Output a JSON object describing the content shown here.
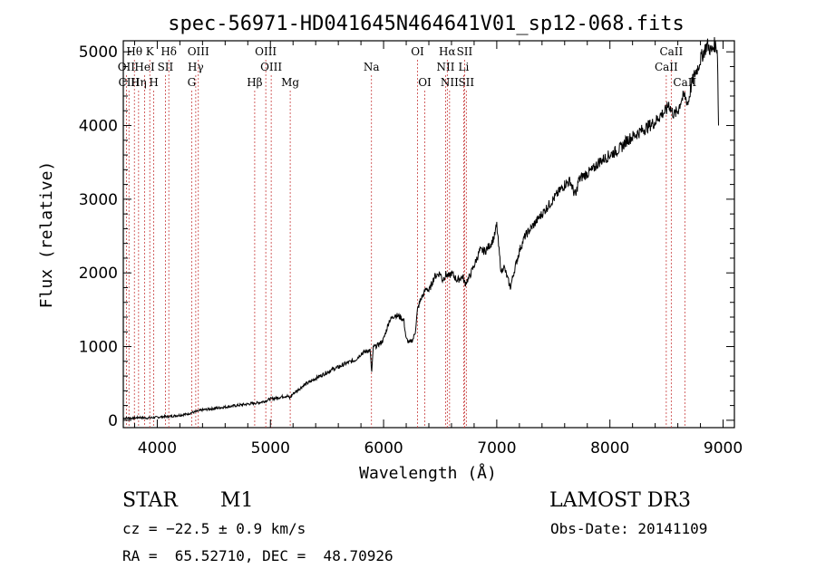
{
  "chart_data": {
    "type": "line",
    "title": "spec-56971-HD041645N464641V01_sp12-068.fits",
    "xlabel": "Wavelength (Å)",
    "ylabel": "Flux (relative)",
    "xlim": [
      3700,
      9100
    ],
    "ylim": [
      -100,
      5150
    ],
    "xticks": [
      4000,
      5000,
      6000,
      7000,
      8000,
      9000
    ],
    "xtick_labels": [
      "4000",
      "5000",
      "6000",
      "7000",
      "8000",
      "9000"
    ],
    "yticks": [
      0,
      1000,
      2000,
      3000,
      4000,
      5000
    ],
    "ytick_labels": [
      "0",
      "1000",
      "2000",
      "3000",
      "4000",
      "5000"
    ],
    "series": [
      {
        "name": "spectrum",
        "x": [
          3700,
          3750,
          3800,
          3850,
          3900,
          3950,
          4000,
          4050,
          4100,
          4150,
          4200,
          4250,
          4300,
          4350,
          4400,
          4450,
          4500,
          4550,
          4600,
          4650,
          4700,
          4750,
          4800,
          4850,
          4900,
          4950,
          5000,
          5050,
          5100,
          5150,
          5170,
          5200,
          5250,
          5300,
          5350,
          5400,
          5450,
          5500,
          5550,
          5600,
          5650,
          5700,
          5750,
          5800,
          5850,
          5880,
          5895,
          5910,
          5930,
          5950,
          5980,
          6000,
          6050,
          6100,
          6150,
          6180,
          6200,
          6230,
          6260,
          6280,
          6300,
          6330,
          6350,
          6380,
          6400,
          6450,
          6500,
          6520,
          6550,
          6580,
          6600,
          6650,
          6700,
          6720,
          6760,
          6800,
          6850,
          6900,
          6950,
          6980,
          7000,
          7020,
          7040,
          7060,
          7080,
          7100,
          7120,
          7150,
          7200,
          7250,
          7300,
          7350,
          7400,
          7450,
          7500,
          7550,
          7600,
          7650,
          7680,
          7700,
          7720,
          7750,
          7800,
          7850,
          7900,
          7950,
          8000,
          8050,
          8100,
          8150,
          8200,
          8250,
          8300,
          8350,
          8400,
          8450,
          8498,
          8520,
          8542,
          8570,
          8600,
          8630,
          8662,
          8690,
          8720,
          8750,
          8780,
          8800,
          8830,
          8860,
          8880,
          8900,
          8920,
          8940,
          8950,
          8960
        ],
        "y": [
          30,
          30,
          30,
          40,
          30,
          35,
          40,
          50,
          50,
          60,
          70,
          80,
          100,
          120,
          140,
          150,
          160,
          170,
          180,
          190,
          200,
          210,
          220,
          230,
          240,
          260,
          290,
          300,
          320,
          330,
          300,
          360,
          420,
          480,
          520,
          570,
          610,
          650,
          690,
          720,
          760,
          790,
          820,
          900,
          940,
          950,
          650,
          1000,
          1000,
          1020,
          1060,
          1100,
          1350,
          1430,
          1400,
          1350,
          1100,
          1050,
          1100,
          1200,
          1500,
          1650,
          1700,
          1800,
          1750,
          1950,
          2000,
          1900,
          1980,
          1950,
          2000,
          1900,
          1950,
          1850,
          1950,
          2100,
          2300,
          2300,
          2400,
          2500,
          2650,
          2300,
          2000,
          2100,
          2000,
          1900,
          1800,
          2000,
          2300,
          2500,
          2600,
          2700,
          2800,
          2900,
          3000,
          3100,
          3200,
          3250,
          3100,
          3050,
          3250,
          3300,
          3350,
          3400,
          3500,
          3550,
          3600,
          3650,
          3700,
          3800,
          3850,
          3900,
          3950,
          4000,
          4050,
          4150,
          4200,
          4300,
          4200,
          4150,
          4200,
          4350,
          4400,
          4300,
          4550,
          4700,
          4800,
          4900,
          5000,
          5100,
          5050,
          5000,
          5100,
          5080,
          5000,
          4000
        ]
      }
    ],
    "spectral_lines": [
      {
        "label": "Hθ",
        "x": 3798,
        "row": 1
      },
      {
        "label": "K",
        "x": 3934,
        "row": 1
      },
      {
        "label": "Hδ",
        "x": 4102,
        "row": 1
      },
      {
        "label": "OII",
        "x": 3727,
        "row": 2
      },
      {
        "label": "HeI",
        "x": 3889,
        "row": 2
      },
      {
        "label": "SII",
        "x": 4072,
        "row": 2
      },
      {
        "label": "CIII",
        "x": 3750,
        "row": 3
      },
      {
        "label": "Hη",
        "x": 3835,
        "row": 3
      },
      {
        "label": "H",
        "x": 3969,
        "row": 3
      },
      {
        "label": "OIII",
        "x": 4363,
        "row": 1
      },
      {
        "label": "Hγ",
        "x": 4340,
        "row": 2
      },
      {
        "label": "G",
        "x": 4304,
        "row": 3
      },
      {
        "label": "OIII",
        "x": 4959,
        "row": 1
      },
      {
        "label": "OIII",
        "x": 5007,
        "row": 2
      },
      {
        "label": "Hβ",
        "x": 4861,
        "row": 3
      },
      {
        "label": "Mg",
        "x": 5175,
        "row": 3
      },
      {
        "label": "Na",
        "x": 5893,
        "row": 2
      },
      {
        "label": "OI",
        "x": 6300,
        "row": 1
      },
      {
        "label": "OI",
        "x": 6364,
        "row": 3
      },
      {
        "label": "Hα",
        "x": 6563,
        "row": 1
      },
      {
        "label": "SII",
        "x": 6716,
        "row": 1
      },
      {
        "label": "NII",
        "x": 6548,
        "row": 2
      },
      {
        "label": "Li",
        "x": 6708,
        "row": 2
      },
      {
        "label": "NII",
        "x": 6583,
        "row": 3
      },
      {
        "label": "SII",
        "x": 6731,
        "row": 3
      },
      {
        "label": "CaII",
        "x": 8542,
        "row": 1
      },
      {
        "label": "CaII",
        "x": 8498,
        "row": 2
      },
      {
        "label": "CaII",
        "x": 8662,
        "row": 3
      }
    ]
  },
  "info": {
    "object_class": "STAR",
    "subclass": "M1",
    "survey": "LAMOST DR3",
    "cz": "cz = −22.5 ± 0.9 km/s",
    "obs_date": "Obs-Date: 20141109",
    "coords": "RA =  65.52710, DEC =  48.70926"
  },
  "colors": {
    "line_marker": "#c83c3c",
    "spectrum": "#000000",
    "axes": "#000000"
  }
}
